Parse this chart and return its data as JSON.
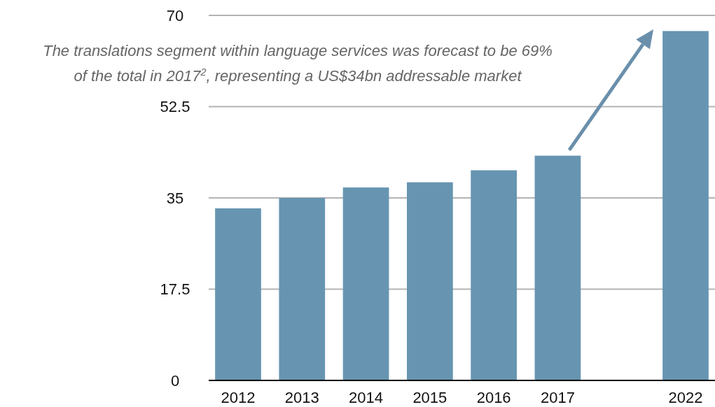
{
  "chart_data": {
    "type": "bar",
    "categories": [
      "2012",
      "2013",
      "2014",
      "2015",
      "2016",
      "2017",
      null,
      "2022"
    ],
    "values": [
      33,
      35,
      37,
      38,
      40.3,
      43.1,
      null,
      67
    ],
    "color": "#6795b1",
    "ylim": [
      0,
      70
    ],
    "yticks": [
      0,
      17.5,
      35,
      52.5,
      70
    ],
    "grid": "y",
    "annotations": [
      "The translations segment within language services was forecast to be 69% of the total in 2017$^{2}$, representing a US$34bn addressable market"
    ]
  }
}
